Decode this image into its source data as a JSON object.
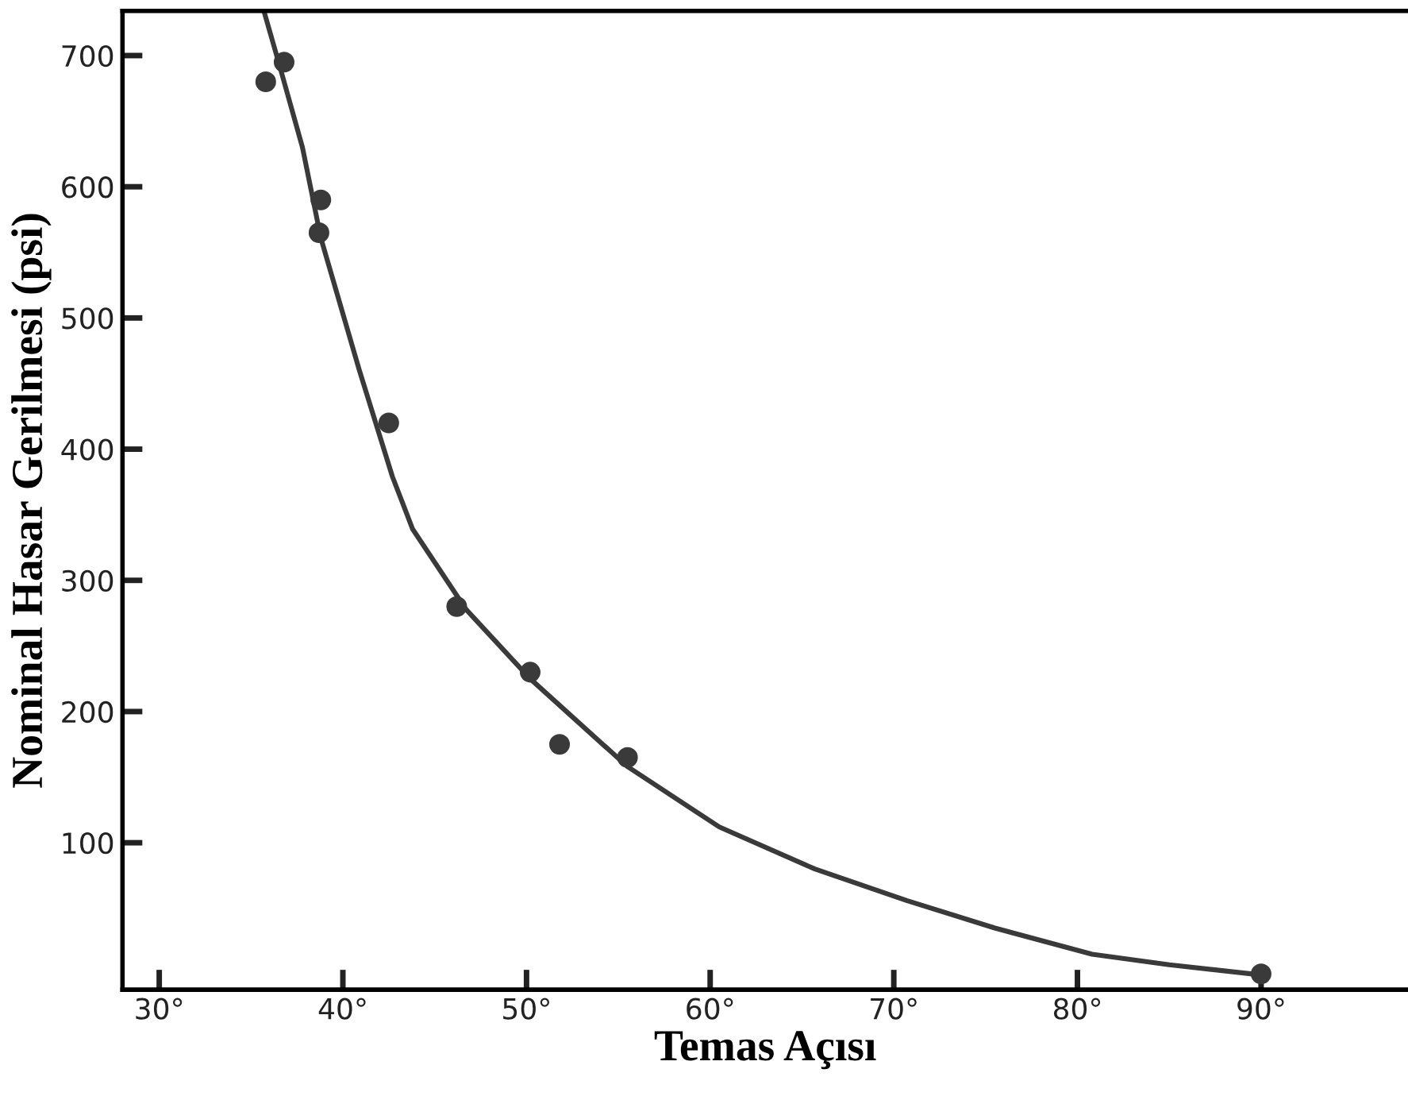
{
  "chart_data": {
    "type": "scatter",
    "xlabel": "Temas Açısı",
    "ylabel": "Nominal Hasar Gerilmesi (psi)",
    "xlim": [
      28,
      98
    ],
    "ylim": [
      -12,
      734
    ],
    "xticks": [
      {
        "value": 30,
        "label": "30°"
      },
      {
        "value": 40,
        "label": "40°"
      },
      {
        "value": 50,
        "label": "50°"
      },
      {
        "value": 60,
        "label": "60°"
      },
      {
        "value": 70,
        "label": "70°"
      },
      {
        "value": 80,
        "label": "80°"
      },
      {
        "value": 90,
        "label": "90°"
      }
    ],
    "yticks": [
      100,
      200,
      300,
      400,
      500,
      600,
      700
    ],
    "grid": false,
    "legend": false,
    "series": [
      {
        "marker": "circle",
        "color": "#3a3a3a",
        "x": [
          35.8,
          36.8,
          38.8,
          38.7,
          42.5,
          46.2,
          50.2,
          51.8,
          55.5,
          90
        ],
        "values": [
          680,
          695,
          590,
          565,
          420,
          280,
          230,
          175,
          165,
          0
        ]
      },
      {
        "type": "line",
        "color": "#3a3a3a",
        "line_style": "solid",
        "marker": "none",
        "x": [
          35.7,
          36.6,
          37.8,
          38.8,
          40.9,
          42.7,
          43.8,
          46.7,
          50.2,
          55.5,
          60.5,
          65.7,
          70.7,
          75.5,
          80.8,
          85,
          89.5
        ],
        "values": [
          734,
          690,
          630,
          561,
          460,
          379,
          339,
          278,
          225,
          158,
          112,
          80,
          56,
          35,
          15,
          7,
          0
        ]
      }
    ]
  }
}
